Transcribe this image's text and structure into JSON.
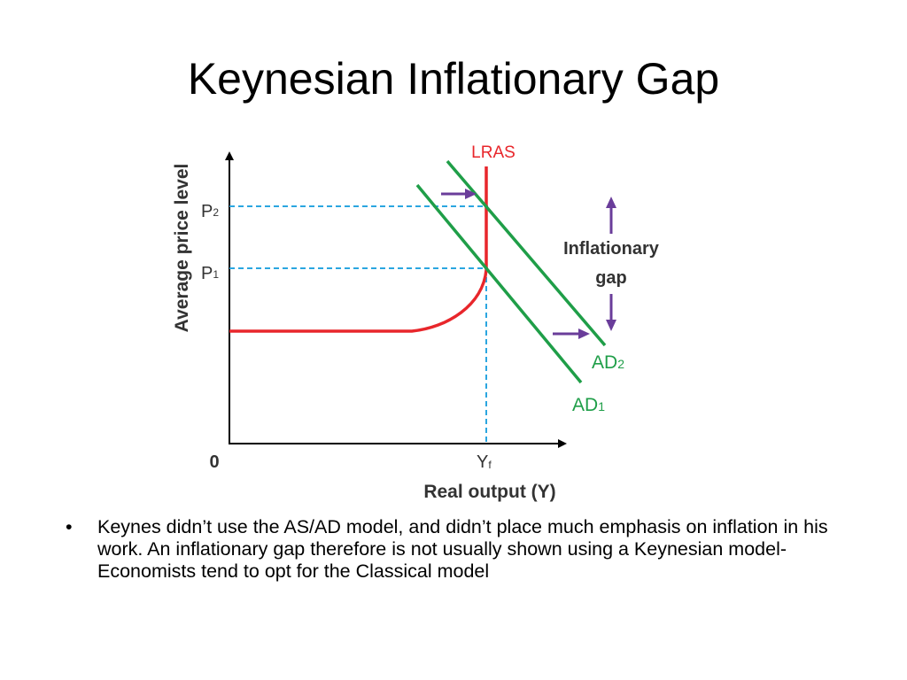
{
  "slide": {
    "title": "Keynesian Inflationary Gap",
    "bullet_symbol": "•",
    "bullet_text": "Keynes didn’t use the AS/AD model, and didn’t place much emphasis on inflation in his work. An inflationary gap therefore is not usually shown using a Keynesian model- Economists tend to opt for the Classical model"
  },
  "diagram": {
    "y_axis_label": "Average price level",
    "x_axis_label": "Real output (Y)",
    "origin_label": "0",
    "p2": {
      "main": "P",
      "sub": "2"
    },
    "p1": {
      "main": "P",
      "sub": "1"
    },
    "yf": {
      "main": "Y",
      "sub": "f"
    },
    "lras_label": "LRAS",
    "ad1": {
      "main": "AD",
      "sub": "1"
    },
    "ad2": {
      "main": "AD",
      "sub": "2"
    },
    "gap_label_line1": "Inflationary",
    "gap_label_line2": "gap",
    "colors": {
      "lras": "#e8262b",
      "ad": "#1f9e48",
      "dashed": "#2ba6e0",
      "arrow": "#6a3d9a",
      "axis": "#000000",
      "text": "#333333"
    }
  }
}
